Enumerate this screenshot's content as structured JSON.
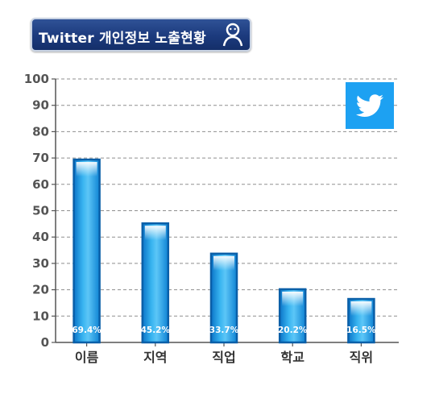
{
  "banner": {
    "title": "Twitter 개인정보 노출현황",
    "icon": "person-icon"
  },
  "logo": {
    "icon": "twitter-bird-icon",
    "color": "#1da1f2"
  },
  "chart_data": {
    "type": "bar",
    "categories": [
      "이름",
      "지역",
      "직업",
      "학교",
      "직위"
    ],
    "values": [
      69.4,
      45.2,
      33.7,
      20.2,
      16.5
    ],
    "value_labels": [
      "69.4%",
      "45.2%",
      "33.7%",
      "20.2%",
      "16.5%"
    ],
    "ylim": [
      0,
      100
    ],
    "yticks": [
      "0",
      "10",
      "20",
      "30",
      "40",
      "50",
      "60",
      "70",
      "80",
      "90",
      "100"
    ],
    "grid": true,
    "bar_color": "#1a9be0",
    "bar_border_color": "#0a5fa8"
  }
}
